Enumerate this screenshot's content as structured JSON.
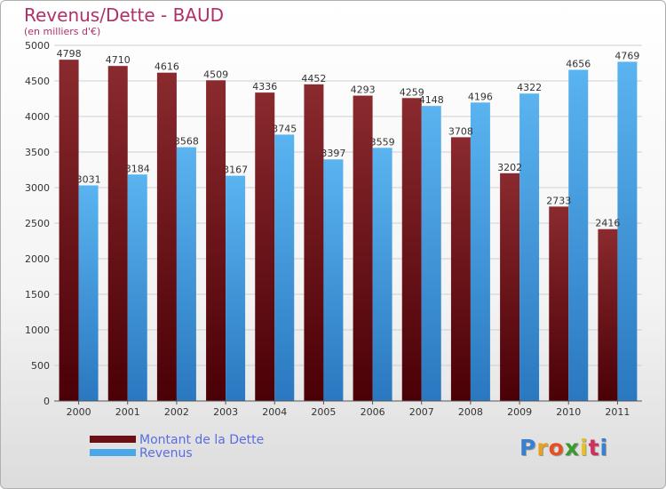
{
  "chart_data": {
    "type": "bar",
    "title": "Revenus/Dette - BAUD",
    "subtitle": "(en milliers d'€)",
    "categories": [
      "2000",
      "2001",
      "2002",
      "2003",
      "2004",
      "2005",
      "2006",
      "2007",
      "2008",
      "2009",
      "2010",
      "2011"
    ],
    "series": [
      {
        "name": "Montant de la Dette",
        "color": "#7a1418",
        "values": [
          4798,
          4710,
          4616,
          4509,
          4336,
          4452,
          4293,
          4259,
          3708,
          3202,
          2733,
          2416
        ]
      },
      {
        "name": "Revenus",
        "color": "#4aa8ea",
        "values": [
          3031,
          3184,
          3568,
          3167,
          3745,
          3397,
          3559,
          4148,
          4196,
          4322,
          4656,
          4769
        ]
      }
    ],
    "ylim": [
      0,
      5000
    ],
    "yticks": [
      0,
      500,
      1000,
      1500,
      2000,
      2500,
      3000,
      3500,
      4000,
      4500,
      5000
    ],
    "grid": true,
    "legend_position": "bottom-left"
  },
  "brand": {
    "letters": [
      "P",
      "r",
      "o",
      "x",
      "i",
      "t",
      "i"
    ],
    "colors": [
      "#3a7fd0",
      "#e8a020",
      "#e85020",
      "#3a9a30",
      "#e8c020",
      "#d03060",
      "#3a7fd0"
    ]
  }
}
